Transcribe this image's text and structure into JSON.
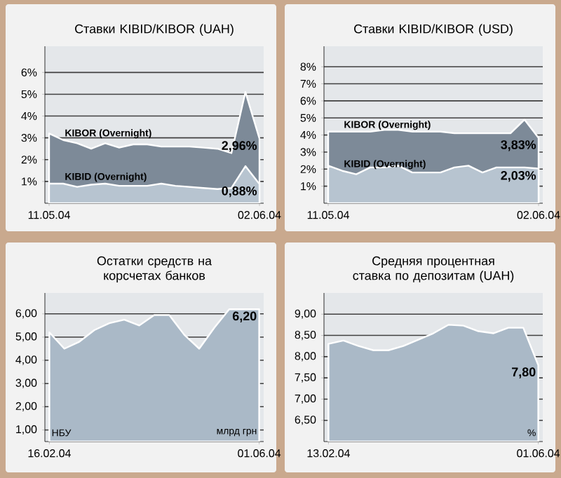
{
  "chart_data": [
    {
      "type": "area",
      "title": "Ставки KIBID/KIBOR (UAH)",
      "categories": [
        "11.05.04",
        null,
        null,
        null,
        null,
        null,
        null,
        null,
        null,
        null,
        null,
        null,
        null,
        null,
        null,
        "02.06.04"
      ],
      "series": [
        {
          "name": "KIBOR (Overnight)",
          "color": "#7d8a98",
          "values": [
            3.2,
            2.9,
            2.75,
            2.5,
            2.75,
            2.55,
            2.7,
            2.7,
            2.6,
            2.6,
            2.6,
            2.55,
            2.5,
            2.3,
            5.1,
            2.96
          ],
          "value_labels": [
            null,
            null,
            null,
            null,
            null,
            null,
            null,
            null,
            null,
            null,
            null,
            null,
            null,
            null,
            null,
            "2,96%"
          ]
        },
        {
          "name": "KIBID (Overnight)",
          "color": "#b7c4d0",
          "values": [
            0.9,
            0.9,
            0.75,
            0.85,
            0.9,
            0.8,
            0.8,
            0.8,
            0.9,
            0.8,
            0.75,
            0.7,
            0.65,
            0.7,
            1.7,
            0.88
          ],
          "value_labels": [
            null,
            null,
            null,
            null,
            null,
            null,
            null,
            null,
            null,
            null,
            null,
            null,
            null,
            null,
            null,
            "0,88%"
          ]
        }
      ],
      "ylim": [
        0,
        7.2
      ],
      "yticks": [
        {
          "value": 1,
          "label": "1%"
        },
        {
          "value": 2,
          "label": "2%"
        },
        {
          "value": 3,
          "label": "3%"
        },
        {
          "value": 4,
          "label": "4%"
        },
        {
          "value": 5,
          "label": "5%"
        },
        {
          "value": 6,
          "label": "6%"
        }
      ],
      "grid": "y"
    },
    {
      "type": "area",
      "title": "Ставки KIBID/KIBOR (USD)",
      "categories": [
        "11.05.04",
        null,
        null,
        null,
        null,
        null,
        null,
        null,
        null,
        null,
        null,
        null,
        null,
        null,
        null,
        "02.06.04"
      ],
      "series": [
        {
          "name": "KIBOR (Overnight)",
          "color": "#7d8a98",
          "values": [
            4.2,
            4.2,
            4.2,
            4.2,
            4.3,
            4.3,
            4.2,
            4.2,
            4.2,
            4.1,
            4.1,
            4.1,
            4.1,
            4.1,
            4.9,
            3.83
          ],
          "value_labels": [
            null,
            null,
            null,
            null,
            null,
            null,
            null,
            null,
            null,
            null,
            null,
            null,
            null,
            null,
            null,
            "3,83%"
          ]
        },
        {
          "name": "KIBID (Overnight)",
          "color": "#b7c4d0",
          "values": [
            2.2,
            1.9,
            1.7,
            2.1,
            2.1,
            2.2,
            1.8,
            1.8,
            1.8,
            2.1,
            2.2,
            1.8,
            2.1,
            2.1,
            2.1,
            2.03
          ],
          "value_labels": [
            null,
            null,
            null,
            null,
            null,
            null,
            null,
            null,
            null,
            null,
            null,
            null,
            null,
            null,
            null,
            "2,03%"
          ]
        }
      ],
      "ylim": [
        0,
        9.2
      ],
      "yticks": [
        {
          "value": 1,
          "label": "1%"
        },
        {
          "value": 2,
          "label": "2%"
        },
        {
          "value": 3,
          "label": "3%"
        },
        {
          "value": 4,
          "label": "4%"
        },
        {
          "value": 5,
          "label": "5%"
        },
        {
          "value": 6,
          "label": "6%"
        },
        {
          "value": 7,
          "label": "7%"
        },
        {
          "value": 8,
          "label": "8%"
        }
      ],
      "grid": "y"
    },
    {
      "type": "area",
      "title": "Остатки средств на корсчетах банков",
      "categories": [
        "16.02.04",
        null,
        null,
        null,
        null,
        null,
        null,
        null,
        null,
        null,
        null,
        null,
        null,
        null,
        "01.06.04"
      ],
      "series": [
        {
          "color": "#aab9c7",
          "values": [
            5.2,
            4.5,
            4.8,
            5.3,
            5.6,
            5.75,
            5.5,
            5.95,
            5.95,
            5.1,
            4.5,
            5.4,
            6.2,
            6.2,
            6.2
          ],
          "value_labels": [
            null,
            null,
            null,
            null,
            null,
            null,
            null,
            null,
            null,
            null,
            null,
            null,
            null,
            null,
            "6,20"
          ]
        }
      ],
      "ylim": [
        0.5,
        6.9
      ],
      "yticks": [
        {
          "value": 1,
          "label": "1,00"
        },
        {
          "value": 2,
          "label": "2,00"
        },
        {
          "value": 3,
          "label": "3,00"
        },
        {
          "value": 4,
          "label": "4,00"
        },
        {
          "value": 5,
          "label": "5,00"
        },
        {
          "value": 6,
          "label": "6,00"
        }
      ],
      "grid": "y",
      "annotations": [
        "НБУ",
        "млрд грн"
      ]
    },
    {
      "type": "area",
      "title": "Средняя процентная ставка по депозитам (UAH)",
      "categories": [
        "13.02.04",
        null,
        null,
        null,
        null,
        null,
        null,
        null,
        null,
        null,
        null,
        null,
        null,
        null,
        "01.06.04"
      ],
      "series": [
        {
          "color": "#aab9c7",
          "values": [
            8.3,
            8.38,
            8.25,
            8.15,
            8.15,
            8.25,
            8.4,
            8.55,
            8.75,
            8.73,
            8.6,
            8.55,
            8.68,
            8.68,
            7.8
          ],
          "value_labels": [
            null,
            null,
            null,
            null,
            null,
            null,
            null,
            null,
            null,
            null,
            null,
            null,
            null,
            null,
            "7,80"
          ]
        }
      ],
      "ylim": [
        6.0,
        9.5
      ],
      "yticks": [
        {
          "value": 6.5,
          "label": "6,50"
        },
        {
          "value": 7,
          "label": "7,00"
        },
        {
          "value": 7.5,
          "label": "7,50"
        },
        {
          "value": 8,
          "label": "8,00"
        },
        {
          "value": 8.5,
          "label": "8,50"
        },
        {
          "value": 9,
          "label": "9,00"
        }
      ],
      "grid": "y",
      "annotations": [
        "%"
      ]
    }
  ]
}
